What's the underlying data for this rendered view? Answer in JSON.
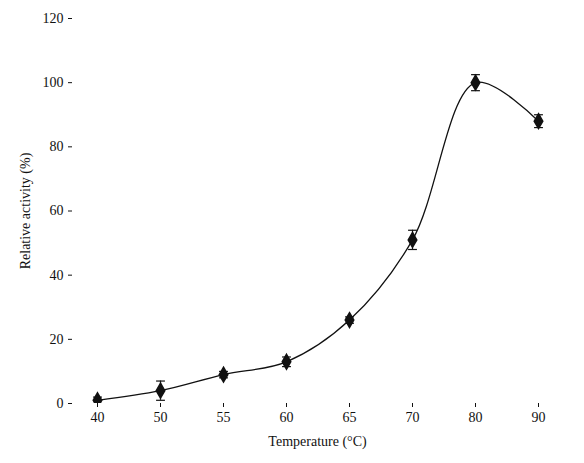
{
  "chart_data": {
    "type": "line",
    "x_label": "Temperature (°C)",
    "y_label": "Relative activity (%)",
    "categories": [
      "40",
      "50",
      "55",
      "60",
      "65",
      "70",
      "80",
      "90"
    ],
    "values": [
      1,
      4,
      9,
      13,
      26,
      51,
      100,
      88
    ],
    "errors": [
      1,
      3,
      1,
      1.5,
      1,
      3,
      2.5,
      2
    ],
    "ylim": [
      0,
      120
    ],
    "yticks": [
      0,
      20,
      40,
      60,
      80,
      100,
      120
    ],
    "color": "#111111",
    "marker": "diamond",
    "line_style": "solid",
    "grid": false
  }
}
